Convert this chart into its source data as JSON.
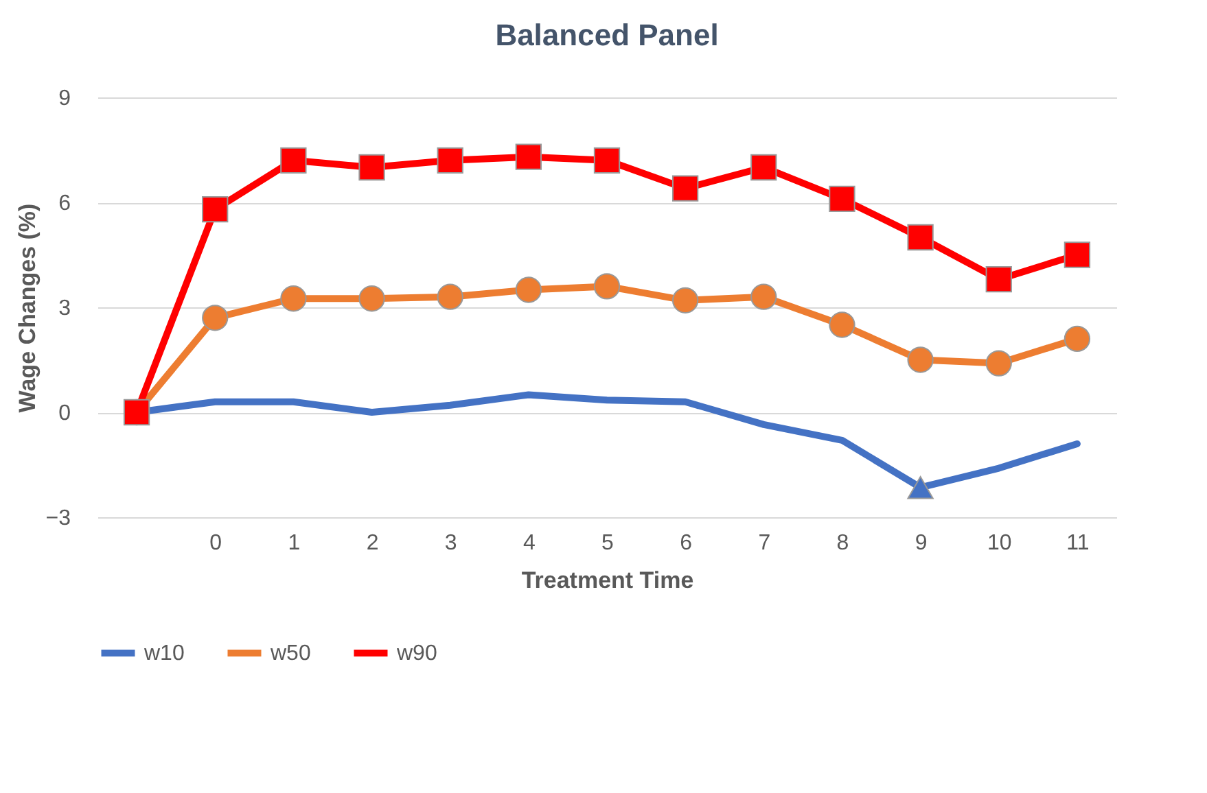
{
  "chart_data": {
    "type": "line",
    "title": "Balanced Panel",
    "xlabel": "Treatment Time",
    "ylabel": "Wage Changes (%)",
    "categories": [
      null,
      "0",
      "1",
      "2",
      "3",
      "4",
      "5",
      "6",
      "7",
      "8",
      "9",
      "10",
      "11"
    ],
    "ylim": [
      -3,
      9
    ],
    "yticks": [
      -3,
      0,
      3,
      6,
      9
    ],
    "grid": "y",
    "legend": "bottom",
    "series": [
      {
        "name": "w10",
        "color": "#4472c4",
        "marker": "none",
        "values": [
          0,
          0.3,
          0.3,
          0,
          0.2,
          0.5,
          0.35,
          0.3,
          -0.35,
          -0.8,
          -2.15,
          -1.6,
          -0.9
        ]
      },
      {
        "name": "w50",
        "color": "#ed7d31",
        "marker": "circle",
        "values": [
          0,
          2.7,
          3.25,
          3.25,
          3.3,
          3.5,
          3.6,
          3.2,
          3.3,
          2.5,
          1.5,
          1.4,
          2.1
        ]
      },
      {
        "name": "w90",
        "color": "#ff0000",
        "marker": "square",
        "values": [
          0,
          5.8,
          7.2,
          7.0,
          7.2,
          7.3,
          7.2,
          6.4,
          7.0,
          6.1,
          5.0,
          3.8,
          4.5
        ]
      },
      {
        "type": "scatter",
        "color": "#4472c4",
        "marker": "triangle",
        "x": [
          "9"
        ],
        "values": [
          -2.15
        ]
      }
    ]
  }
}
